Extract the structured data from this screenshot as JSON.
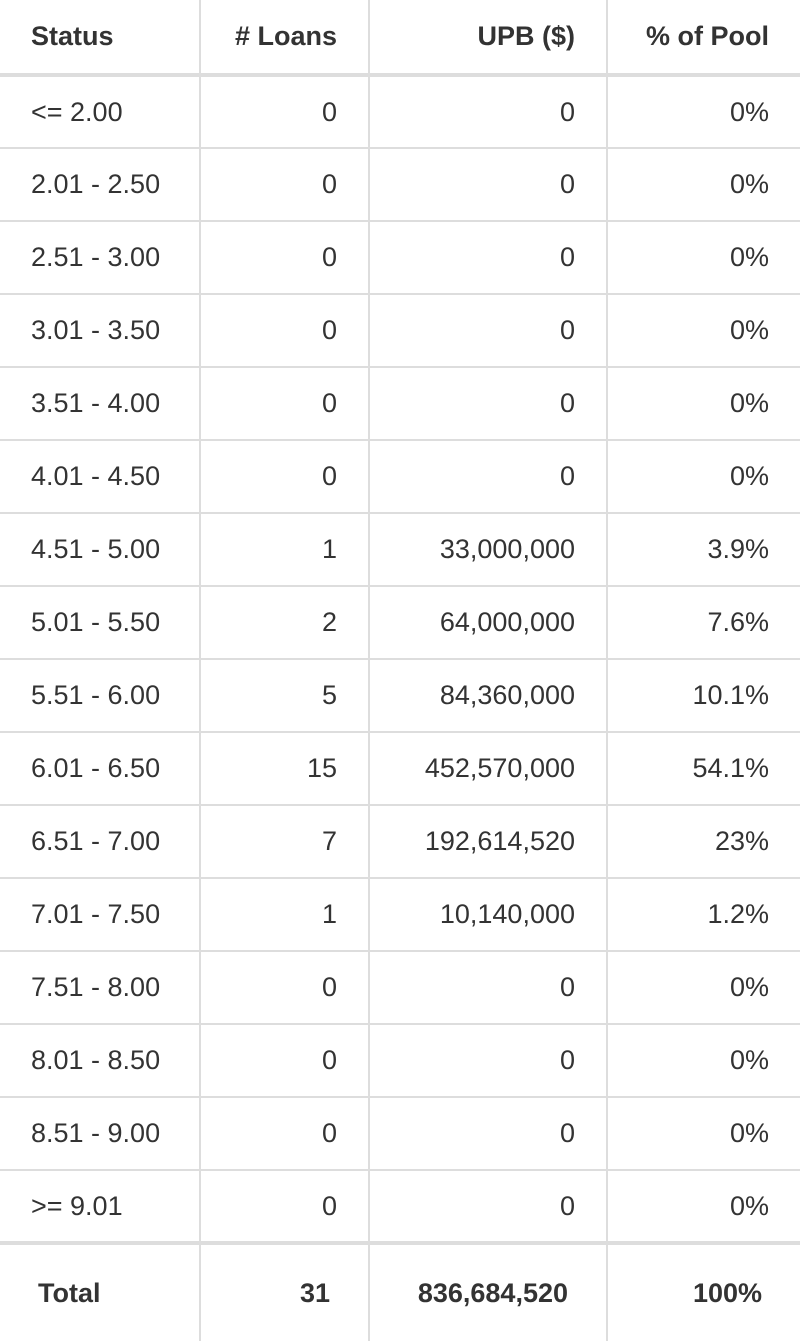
{
  "table": {
    "header": [
      "Status",
      "# Loans",
      "UPB ($)",
      "% of Pool"
    ],
    "rows": [
      [
        "<= 2.00",
        "0",
        "0",
        "0%"
      ],
      [
        "2.01 - 2.50",
        "0",
        "0",
        "0%"
      ],
      [
        "2.51 - 3.00",
        "0",
        "0",
        "0%"
      ],
      [
        "3.01 - 3.50",
        "0",
        "0",
        "0%"
      ],
      [
        "3.51 - 4.00",
        "0",
        "0",
        "0%"
      ],
      [
        "4.01 - 4.50",
        "0",
        "0",
        "0%"
      ],
      [
        "4.51 - 5.00",
        "1",
        "33,000,000",
        "3.9%"
      ],
      [
        "5.01 - 5.50",
        "2",
        "64,000,000",
        "7.6%"
      ],
      [
        "5.51 - 6.00",
        "5",
        "84,360,000",
        "10.1%"
      ],
      [
        "6.01 - 6.50",
        "15",
        "452,570,000",
        "54.1%"
      ],
      [
        "6.51 - 7.00",
        "7",
        "192,614,520",
        "23%"
      ],
      [
        "7.01 - 7.50",
        "1",
        "10,140,000",
        "1.2%"
      ],
      [
        "7.51 - 8.00",
        "0",
        "0",
        "0%"
      ],
      [
        "8.01 - 8.50",
        "0",
        "0",
        "0%"
      ],
      [
        "8.51 - 9.00",
        "0",
        "0",
        "0%"
      ],
      [
        ">= 9.01",
        "0",
        "0",
        "0%"
      ]
    ],
    "footer": [
      "Total",
      "31",
      "836,684,520",
      "100%"
    ]
  }
}
